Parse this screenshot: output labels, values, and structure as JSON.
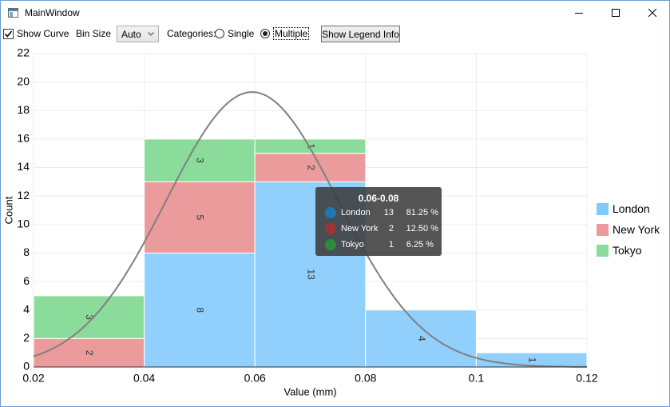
{
  "window": {
    "title": "MainWindow"
  },
  "toolbar": {
    "show_curve_label": "Show Curve",
    "show_curve_checked": true,
    "bin_size_label": "Bin Size",
    "bin_size_value": "Auto",
    "categories_label": "Categories:",
    "single_label": "Single",
    "multiple_label": "Multiple",
    "selected_mode": "Multiple",
    "legend_button_label": "Show Legend Info"
  },
  "legend": [
    {
      "name": "London",
      "color": "#7fcbff"
    },
    {
      "name": "New York",
      "color": "#eb9b9b"
    },
    {
      "name": "Tokyo",
      "color": "#8bdb9b"
    }
  ],
  "tooltip": {
    "title": "0.06-0.08",
    "rows": [
      {
        "name": "London",
        "count": "13",
        "percent": "81.25 %",
        "color": "#1f77b4"
      },
      {
        "name": "New York",
        "count": "2",
        "percent": "12.50 %",
        "color": "#9c3535"
      },
      {
        "name": "Tokyo",
        "count": "1",
        "percent": "6.25 %",
        "color": "#2e8b3e"
      }
    ]
  },
  "chart_data": {
    "type": "bar",
    "stacked": true,
    "histogram": true,
    "xlabel": "Value (mm)",
    "ylabel": "Count",
    "xlim": [
      0.02,
      0.12
    ],
    "ylim": [
      0,
      22
    ],
    "xticks": [
      "0.02",
      "0.04",
      "0.06",
      "0.08",
      "0.1",
      "0.12"
    ],
    "yticks": [
      "0",
      "2",
      "4",
      "6",
      "8",
      "10",
      "12",
      "14",
      "16",
      "18",
      "20",
      "22"
    ],
    "grid": true,
    "legend_position": "right",
    "bins": [
      {
        "from": 0.02,
        "to": 0.04
      },
      {
        "from": 0.04,
        "to": 0.06
      },
      {
        "from": 0.06,
        "to": 0.08
      },
      {
        "from": 0.08,
        "to": 0.1
      },
      {
        "from": 0.1,
        "to": 0.12
      }
    ],
    "series": [
      {
        "name": "London",
        "color": "#91cffc",
        "values": [
          0,
          8,
          13,
          4,
          1
        ]
      },
      {
        "name": "New York",
        "color": "#eb9b9b",
        "values": [
          2,
          5,
          2,
          0,
          0
        ]
      },
      {
        "name": "Tokyo",
        "color": "#8bdb9b",
        "values": [
          3,
          3,
          1,
          0,
          0
        ]
      }
    ],
    "curve": {
      "type": "normal",
      "mean": 0.0595,
      "sd": 0.0155,
      "peak": 19.3,
      "color": "#808080"
    }
  }
}
